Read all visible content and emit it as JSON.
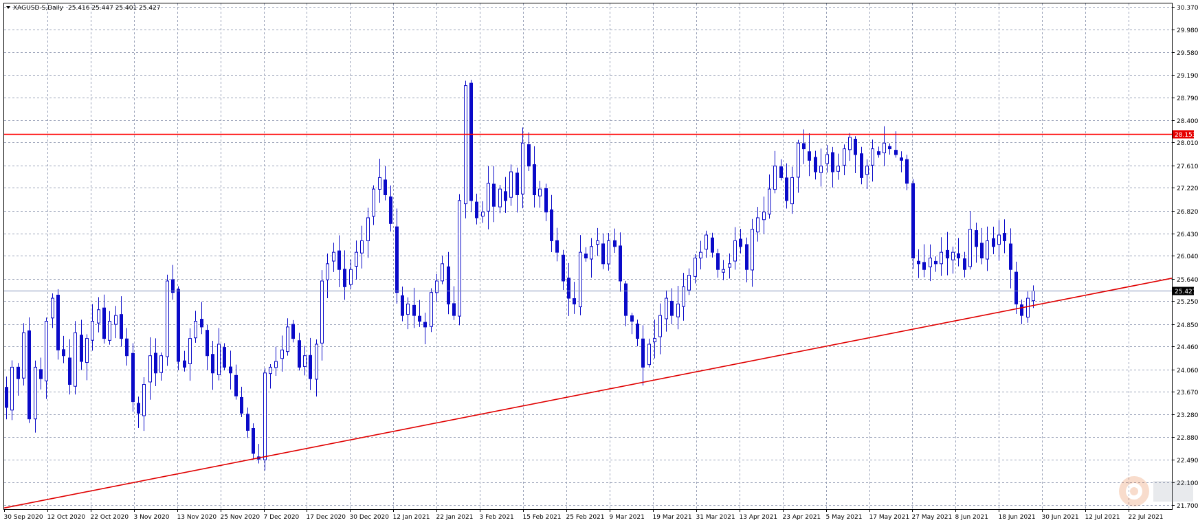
{
  "chart_data": {
    "type": "candlestick",
    "header": {
      "symbol_timeframe": "XAGUSD-S,Daily",
      "ohlc_values": "25.416 25.447 25.401 25.427"
    },
    "y_ticks": [
      "30.370",
      "29.980",
      "29.580",
      "29.190",
      "28.790",
      "28.400",
      "28.010",
      "27.610",
      "27.220",
      "26.820",
      "26.430",
      "26.040",
      "25.640",
      "25.250",
      "24.850",
      "24.460",
      "24.060",
      "23.670",
      "23.280",
      "22.880",
      "22.490",
      "22.100",
      "21.700"
    ],
    "ylim": [
      21.63,
      30.43
    ],
    "x_tick_labels": [
      "30 Sep 2020",
      "12 Oct 2020",
      "22 Oct 2020",
      "3 Nov 2020",
      "13 Nov 2020",
      "25 Nov 2020",
      "7 Dec 2020",
      "17 Dec 2020",
      "30 Dec 2020",
      "12 Jan 2021",
      "22 Jan 2021",
      "3 Feb 2021",
      "15 Feb 2021",
      "25 Feb 2021",
      "9 Mar 2021",
      "19 Mar 2021",
      "31 Mar 2021",
      "13 Apr 2021",
      "23 Apr 2021",
      "5 May 2021",
      "17 May 2021",
      "27 May 2021",
      "8 Jun 2021",
      "18 Jun 2021",
      "30 Jun 2021",
      "12 Jul 2021",
      "22 Jul 2021"
    ],
    "resistance_label": "28.153",
    "resistance_level": 28.153,
    "current_price_label": "25.427",
    "current_price": 25.427,
    "trendline": {
      "start": [
        "30 Sep 2020",
        21.65
      ],
      "end": [
        "22 Jul 2021",
        25.5
      ]
    },
    "grid": true,
    "colors": {
      "candle": "#0a0ac8",
      "resistance": "#ff0000",
      "trendline": "#e00000",
      "price_line": "#8090b8",
      "grid": "#9aa2b8"
    },
    "closes": [
      23.4,
      24.1,
      23.9,
      24.7,
      23.2,
      24.1,
      23.9,
      24.9,
      25.3,
      24.4,
      24.3,
      23.8,
      24.7,
      24.2,
      24.6,
      24.9,
      25.1,
      24.6,
      24.9,
      25.0,
      24.6,
      24.3,
      23.5,
      23.3,
      23.8,
      24.3,
      24.0,
      24.3,
      25.6,
      25.4,
      24.2,
      24.1,
      24.6,
      24.9,
      24.8,
      24.3,
      24.0,
      24.5,
      24.1,
      24.0,
      23.6,
      23.3,
      23.0,
      22.6,
      22.5,
      24.0,
      24.1,
      24.2,
      24.4,
      24.8,
      24.6,
      24.1,
      24.3,
      23.9,
      24.5,
      25.6,
      25.9,
      26.1,
      25.8,
      25.5,
      25.8,
      26.1,
      26.3,
      26.7,
      27.2,
      27.4,
      27.1,
      26.6,
      25.4,
      25.0,
      25.2,
      25.0,
      24.9,
      24.8,
      25.4,
      25.6,
      25.9,
      25.2,
      25.0,
      27.0,
      29.0,
      27.0,
      26.7,
      26.8,
      27.3,
      26.9,
      27.2,
      27.0,
      27.5,
      27.1,
      28.0,
      27.6,
      27.1,
      27.2,
      26.8,
      26.3,
      26.1,
      25.6,
      25.3,
      25.2,
      26.1,
      26.0,
      26.2,
      26.3,
      25.9,
      26.3,
      26.2,
      25.6,
      25.0,
      24.9,
      24.6,
      24.1,
      24.5,
      24.6,
      25.0,
      25.3,
      25.0,
      25.2,
      25.5,
      25.7,
      26.0,
      26.1,
      26.4,
      26.1,
      25.8,
      25.8,
      25.9,
      26.3,
      26.2,
      25.8,
      26.5,
      26.7,
      26.8,
      27.2,
      27.6,
      27.4,
      27.0,
      27.4,
      28.0,
      27.9,
      27.7,
      27.5,
      27.6,
      27.8,
      27.5,
      27.6,
      27.9,
      28.1,
      27.8,
      27.4,
      27.6,
      27.9,
      27.8,
      28.0,
      27.9,
      27.8,
      27.7,
      27.3,
      26.0,
      25.9,
      25.8,
      26.0,
      25.9,
      26.1,
      26.0,
      26.1,
      26.0,
      25.8,
      26.5,
      26.2,
      26.0,
      26.3,
      26.2,
      26.4,
      26.3,
      25.8,
      25.2,
      25.0,
      25.3,
      25.427
    ]
  }
}
